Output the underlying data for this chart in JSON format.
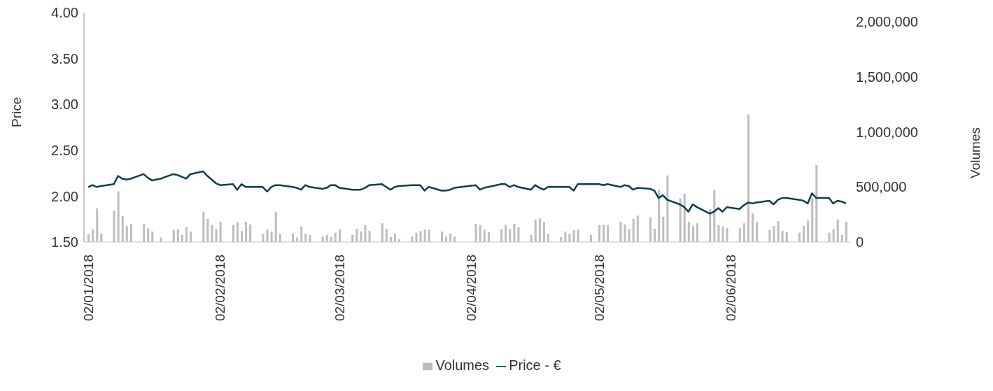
{
  "chart_data": {
    "type": "bar",
    "ylabel": "Price",
    "y2label": "Volumes",
    "legend": "bottom",
    "grid": false,
    "marker": "none",
    "line_style": "solid",
    "x": [
      "2018-01-02",
      "2018-01-03",
      "2018-01-04",
      "2018-01-05",
      "2018-01-08",
      "2018-01-09",
      "2018-01-10",
      "2018-01-11",
      "2018-01-12",
      "2018-01-15",
      "2018-01-16",
      "2018-01-17",
      "2018-01-18",
      "2018-01-19",
      "2018-01-22",
      "2018-01-23",
      "2018-01-24",
      "2018-01-25",
      "2018-01-26",
      "2018-01-29",
      "2018-01-30",
      "2018-01-31",
      "2018-02-01",
      "2018-02-02",
      "2018-02-05",
      "2018-02-06",
      "2018-02-07",
      "2018-02-08",
      "2018-02-09",
      "2018-02-12",
      "2018-02-13",
      "2018-02-14",
      "2018-02-15",
      "2018-02-16",
      "2018-02-19",
      "2018-02-20",
      "2018-02-21",
      "2018-02-22",
      "2018-02-23",
      "2018-02-26",
      "2018-02-27",
      "2018-02-28",
      "2018-03-01",
      "2018-03-02",
      "2018-03-05",
      "2018-03-06",
      "2018-03-07",
      "2018-03-08",
      "2018-03-09",
      "2018-03-12",
      "2018-03-13",
      "2018-03-14",
      "2018-03-15",
      "2018-03-16",
      "2018-03-19",
      "2018-03-20",
      "2018-03-21",
      "2018-03-22",
      "2018-03-23",
      "2018-03-26",
      "2018-03-27",
      "2018-03-28",
      "2018-03-29",
      "2018-04-03",
      "2018-04-04",
      "2018-04-05",
      "2018-04-06",
      "2018-04-09",
      "2018-04-10",
      "2018-04-11",
      "2018-04-12",
      "2018-04-13",
      "2018-04-16",
      "2018-04-17",
      "2018-04-18",
      "2018-04-19",
      "2018-04-20",
      "2018-04-23",
      "2018-04-24",
      "2018-04-25",
      "2018-04-26",
      "2018-04-27",
      "2018-04-30",
      "2018-05-02",
      "2018-05-03",
      "2018-05-04",
      "2018-05-07",
      "2018-05-08",
      "2018-05-09",
      "2018-05-10",
      "2018-05-11",
      "2018-05-14",
      "2018-05-15",
      "2018-05-16",
      "2018-05-17",
      "2018-05-18",
      "2018-05-21",
      "2018-05-22",
      "2018-05-23",
      "2018-05-24",
      "2018-05-25",
      "2018-05-28",
      "2018-05-29",
      "2018-05-30",
      "2018-05-31",
      "2018-06-01",
      "2018-06-04",
      "2018-06-05",
      "2018-06-06",
      "2018-06-07",
      "2018-06-08",
      "2018-06-11",
      "2018-06-12",
      "2018-06-13",
      "2018-06-14",
      "2018-06-15",
      "2018-06-18",
      "2018-06-19",
      "2018-06-20",
      "2018-06-21",
      "2018-06-22",
      "2018-06-25",
      "2018-06-26",
      "2018-06-27",
      "2018-06-28",
      "2018-06-29"
    ],
    "series": [
      {
        "name": "Volumes",
        "axis": "y2",
        "color": "#bdbdb9",
        "values": [
          70000,
          115000,
          305000,
          75000,
          285000,
          460000,
          235000,
          145000,
          165000,
          165000,
          125000,
          95000,
          null,
          40000,
          110000,
          115000,
          65000,
          135000,
          95000,
          275000,
          210000,
          155000,
          120000,
          185000,
          155000,
          180000,
          100000,
          185000,
          160000,
          75000,
          115000,
          95000,
          275000,
          75000,
          75000,
          40000,
          140000,
          75000,
          65000,
          50000,
          65000,
          45000,
          85000,
          115000,
          65000,
          120000,
          95000,
          155000,
          100000,
          170000,
          120000,
          45000,
          75000,
          25000,
          50000,
          85000,
          100000,
          115000,
          110000,
          95000,
          50000,
          75000,
          50000,
          165000,
          155000,
          110000,
          90000,
          115000,
          155000,
          120000,
          165000,
          135000,
          65000,
          205000,
          215000,
          180000,
          70000,
          45000,
          95000,
          75000,
          110000,
          115000,
          65000,
          155000,
          155000,
          155000,
          185000,
          160000,
          115000,
          210000,
          240000,
          225000,
          120000,
          475000,
          230000,
          605000,
          395000,
          440000,
          185000,
          145000,
          170000,
          300000,
          470000,
          155000,
          140000,
          125000,
          125000,
          170000,
          1160000,
          260000,
          185000,
          110000,
          145000,
          190000,
          100000,
          90000,
          85000,
          145000,
          195000,
          400000,
          700000,
          85000,
          115000,
          205000,
          65000,
          185000
        ]
      },
      {
        "name": "Price - €",
        "type": "line",
        "color": "#0d3f4f",
        "values": [
          2.1,
          2.12,
          2.1,
          2.11,
          2.13,
          2.22,
          2.19,
          2.18,
          2.19,
          2.24,
          2.2,
          2.17,
          2.18,
          2.19,
          2.24,
          2.23,
          2.21,
          2.19,
          2.24,
          2.27,
          2.22,
          2.18,
          2.14,
          2.12,
          2.13,
          2.07,
          2.13,
          2.1,
          2.1,
          2.1,
          2.05,
          2.1,
          2.12,
          2.12,
          2.1,
          2.09,
          2.07,
          2.12,
          2.1,
          2.08,
          2.09,
          2.12,
          2.12,
          2.09,
          2.07,
          2.07,
          2.07,
          2.09,
          2.12,
          2.13,
          2.1,
          2.07,
          2.1,
          2.11,
          2.12,
          2.12,
          2.12,
          2.06,
          2.1,
          2.06,
          2.06,
          2.07,
          2.09,
          2.12,
          2.07,
          2.09,
          2.1,
          2.13,
          2.13,
          2.1,
          2.12,
          2.1,
          2.07,
          2.12,
          2.09,
          2.07,
          2.1,
          2.1,
          2.1,
          2.1,
          2.06,
          2.13,
          2.13,
          2.13,
          2.12,
          2.13,
          2.1,
          2.12,
          2.11,
          2.07,
          2.09,
          2.08,
          2.06,
          1.98,
          2.01,
          1.96,
          1.91,
          1.88,
          1.83,
          1.91,
          1.88,
          1.81,
          1.83,
          1.87,
          1.83,
          1.88,
          1.86,
          1.9,
          1.93,
          1.92,
          1.93,
          1.95,
          1.91,
          1.96,
          1.98,
          1.98,
          1.96,
          1.95,
          1.92,
          2.03,
          1.98,
          1.98,
          1.92,
          1.95,
          1.94,
          1.92
        ]
      }
    ],
    "xlim": [
      "2018-01-01",
      "2018-06-30"
    ],
    "xticks": [
      {
        "value": "2018-01-02",
        "label": "02/01/2018"
      },
      {
        "value": "2018-02-02",
        "label": "02/02/2018"
      },
      {
        "value": "2018-03-02",
        "label": "02/03/2018"
      },
      {
        "value": "2018-04-02",
        "label": "02/04/2018"
      },
      {
        "value": "2018-05-02",
        "label": "02/05/2018"
      },
      {
        "value": "2018-06-02",
        "label": "02/06/2018"
      }
    ],
    "ylim": [
      1.5,
      4.0
    ],
    "yticks": [
      {
        "value": 1.5,
        "label": "1.50"
      },
      {
        "value": 2.0,
        "label": "2.00"
      },
      {
        "value": 2.5,
        "label": "2.50"
      },
      {
        "value": 3.0,
        "label": "3.00"
      },
      {
        "value": 3.5,
        "label": "3.50"
      },
      {
        "value": 4.0,
        "label": "4.00"
      }
    ],
    "y2lim": [
      0,
      2085000
    ],
    "y2ticks": [
      0,
      {
        "value": 500000,
        "label": "500,000"
      },
      {
        "value": 1000000,
        "label": "1,000,000"
      },
      {
        "value": 1500000,
        "label": "1,500,000"
      },
      {
        "value": 2000000,
        "label": "2,000,000"
      }
    ]
  }
}
